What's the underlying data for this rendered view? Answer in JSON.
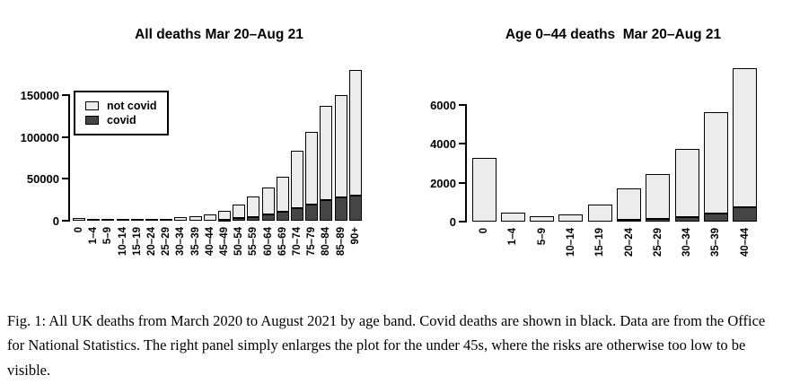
{
  "figure": {
    "caption": "Fig. 1: All UK deaths from March 2020 to August 2021 by age band. Covid deaths are shown in black. Data are from the Office for National Statistics. The right panel simply enlarges the plot for the under 45s, where the risks are otherwise too low to be visible."
  },
  "colors": {
    "covid": "#454545",
    "not_covid": "#ececec",
    "border": "#000000",
    "background": "#ffffff"
  },
  "chart_data": [
    {
      "type": "bar",
      "stacked": true,
      "title": "All deaths Mar 20–Aug 21",
      "categories": [
        "0",
        "1–4",
        "5–9",
        "10–14",
        "15–19",
        "20–24",
        "25–29",
        "30–34",
        "35–39",
        "40–44",
        "45–49",
        "50–54",
        "55–59",
        "60–64",
        "65–69",
        "70–74",
        "75–79",
        "80–84",
        "85–89",
        "90+"
      ],
      "series": [
        {
          "name": "covid",
          "color": "#454545",
          "values": [
            20,
            5,
            5,
            10,
            35,
            80,
            150,
            250,
            420,
            750,
            1400,
            3000,
            4800,
            7000,
            10500,
            15500,
            19000,
            25000,
            28000,
            30000
          ]
        },
        {
          "name": "not covid",
          "color": "#ececec",
          "values": [
            3280,
            445,
            295,
            340,
            865,
            1620,
            2300,
            3500,
            5230,
            7150,
            10600,
            16500,
            24200,
            33000,
            41500,
            68500,
            87000,
            112000,
            122000,
            150000
          ]
        }
      ],
      "totals": [
        3300,
        450,
        300,
        350,
        900,
        1700,
        2450,
        3750,
        5650,
        7900,
        12000,
        19500,
        29000,
        40000,
        52000,
        84000,
        106000,
        137000,
        150000,
        180000
      ],
      "yticks": [
        0,
        50000,
        100000,
        150000
      ],
      "ylim": [
        0,
        185000
      ],
      "grid": false,
      "legend": {
        "visible": true,
        "position": "top-left",
        "entries": [
          "not covid",
          "covid"
        ]
      }
    },
    {
      "type": "bar",
      "stacked": true,
      "title": "Age 0–44 deaths  Mar 20–Aug 21",
      "categories": [
        "0",
        "1–4",
        "5–9",
        "10–14",
        "15–19",
        "20–24",
        "25–29",
        "30–34",
        "35–39",
        "40–44"
      ],
      "series": [
        {
          "name": "covid",
          "color": "#454545",
          "values": [
            20,
            5,
            5,
            10,
            35,
            80,
            150,
            250,
            420,
            750
          ]
        },
        {
          "name": "not covid",
          "color": "#ececec",
          "values": [
            3280,
            445,
            295,
            340,
            865,
            1620,
            2300,
            3500,
            5230,
            7150
          ]
        }
      ],
      "totals": [
        3300,
        450,
        300,
        350,
        900,
        1700,
        2450,
        3750,
        5650,
        7900
      ],
      "yticks": [
        0,
        2000,
        4000,
        6000
      ],
      "ylim": [
        0,
        7900
      ],
      "grid": false,
      "legend": {
        "visible": false,
        "position": null,
        "entries": []
      }
    }
  ]
}
